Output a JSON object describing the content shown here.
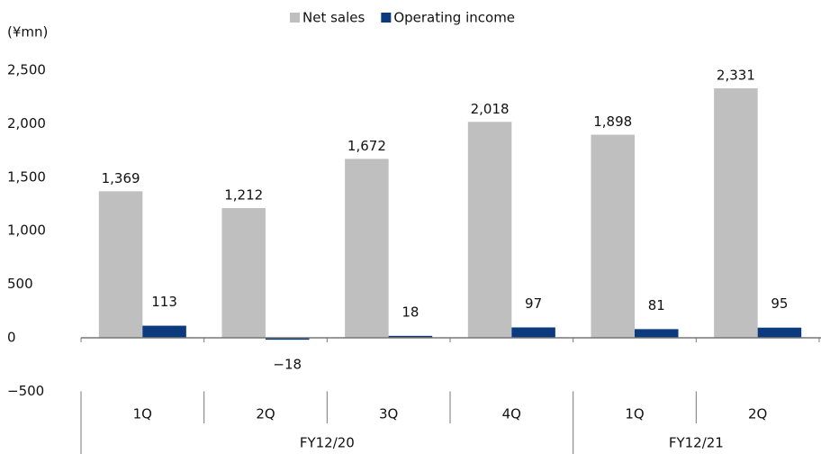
{
  "chart_data": {
    "type": "bar",
    "unit_label": "(¥mn)",
    "categories": [
      "1Q",
      "2Q",
      "3Q",
      "4Q",
      "1Q",
      "2Q"
    ],
    "groups": [
      {
        "label": "FY12/20",
        "span": 4
      },
      {
        "label": "FY12/21",
        "span": 2
      }
    ],
    "series": [
      {
        "name": "Net sales",
        "color": "#bfbfbf",
        "values": [
          1369,
          1212,
          1672,
          2018,
          1898,
          2331
        ],
        "value_labels": [
          "1,369",
          "1,212",
          "1,672",
          "2,018",
          "1,898",
          "2,331"
        ]
      },
      {
        "name": "Operating income",
        "color": "#0b3a7e",
        "values": [
          113,
          -18,
          18,
          97,
          81,
          95
        ],
        "value_labels": [
          "113",
          "−18",
          "18",
          "97",
          "81",
          "95"
        ]
      }
    ],
    "ylim": [
      -500,
      2500
    ],
    "yticks": [
      {
        "value": -500,
        "label": "−500"
      },
      0,
      500,
      {
        "value": 1000,
        "label": "1,000"
      },
      {
        "value": 1500,
        "label": "1,500"
      },
      {
        "value": 2000,
        "label": "2,000"
      },
      {
        "value": 2500,
        "label": "2,500"
      }
    ],
    "legend": "top"
  }
}
